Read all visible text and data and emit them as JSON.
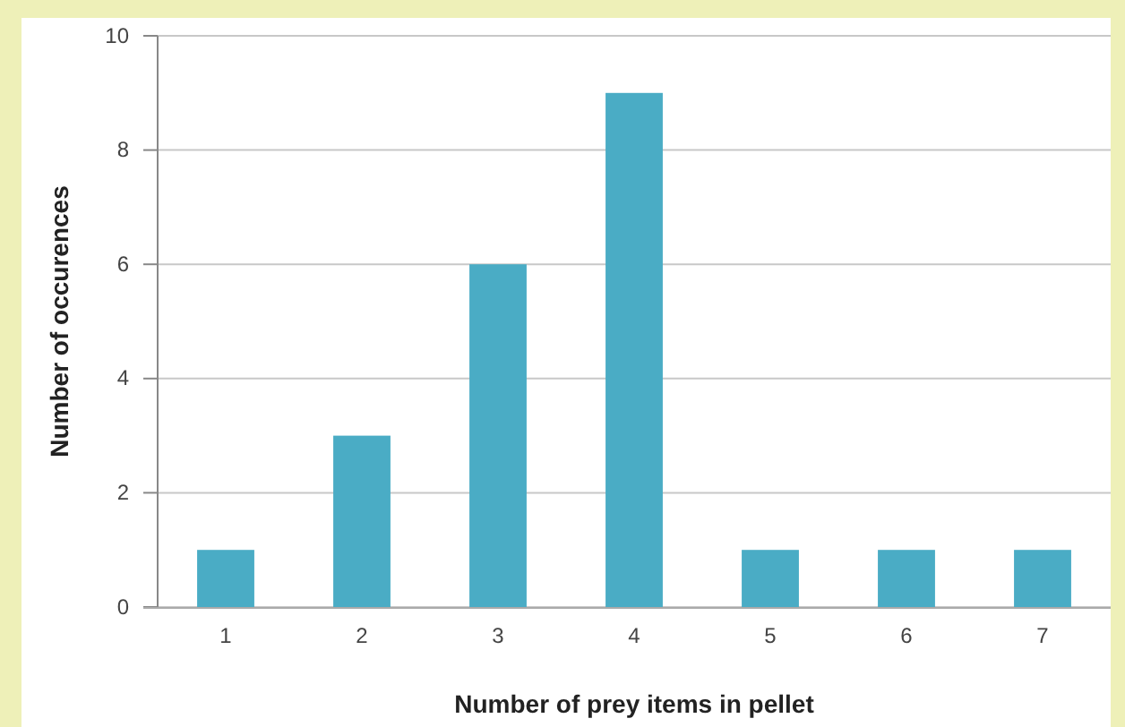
{
  "chart_data": {
    "type": "bar",
    "categories": [
      "1",
      "2",
      "3",
      "4",
      "5",
      "6",
      "7"
    ],
    "values": [
      1,
      3,
      6,
      9,
      1,
      1,
      1
    ],
    "color": "#4aacc5",
    "xlabel": "Number of prey items  in pellet",
    "ylabel": "Number of occurences",
    "ylim": [
      0,
      10
    ],
    "yticks": [
      0,
      2,
      4,
      6,
      8,
      10
    ],
    "grid": "y"
  }
}
